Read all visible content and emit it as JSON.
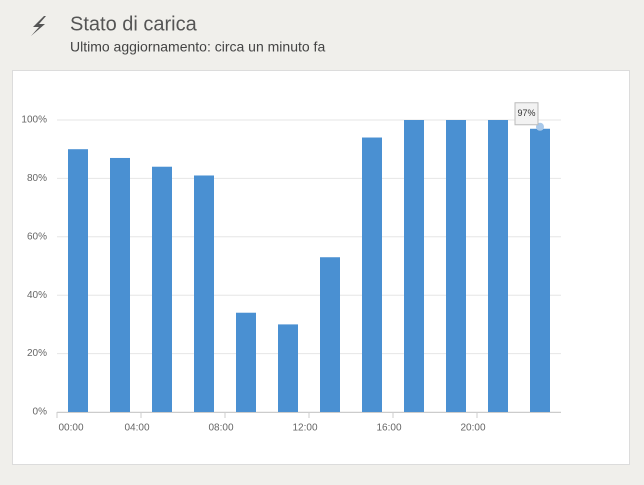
{
  "header": {
    "title": "Stato di carica",
    "subtitle": "Ultimo aggiornamento: circa un minuto fa"
  },
  "chart_data": {
    "type": "bar",
    "categories": [
      "00:00",
      null,
      "04:00",
      null,
      "08:00",
      null,
      "12:00",
      null,
      "16:00",
      null,
      "20:00",
      null
    ],
    "values": [
      90,
      87,
      84,
      81,
      34,
      30,
      53,
      94,
      100,
      100,
      100,
      97
    ],
    "value_labels": [
      null,
      null,
      null,
      null,
      null,
      null,
      null,
      null,
      null,
      null,
      null,
      "97%"
    ],
    "color": "#4a90d2",
    "ylim": [
      0,
      100
    ],
    "yticks": [
      {
        "value": 0,
        "label": "0%"
      },
      {
        "value": 20,
        "label": "20%"
      },
      {
        "value": 40,
        "label": "40%"
      },
      {
        "value": 60,
        "label": "60%"
      },
      {
        "value": 80,
        "label": "80%"
      },
      {
        "value": 100,
        "label": "100%"
      }
    ],
    "grid": true
  }
}
